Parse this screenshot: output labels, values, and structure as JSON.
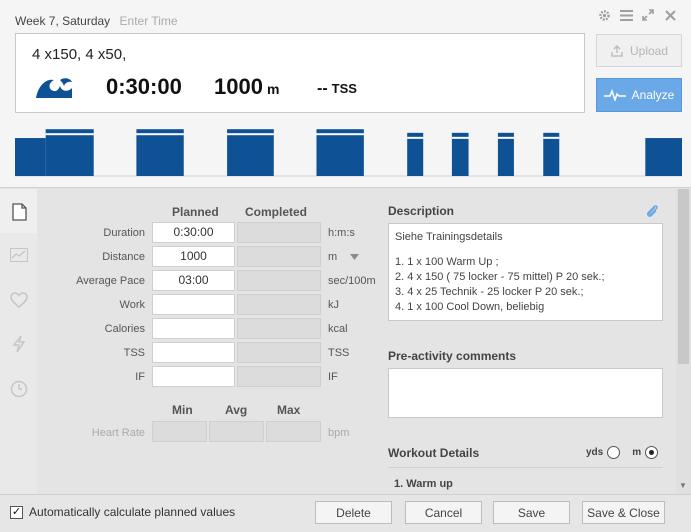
{
  "header": {
    "day_label": "Week 7, Saturday",
    "time_placeholder": "Enter Time",
    "title": "4 x150, 4 x50,",
    "duration": "0:30:00",
    "distance_value": "1000",
    "distance_unit": "m",
    "tss_value": "--",
    "tss_unit": "TSS",
    "upload_label": "Upload",
    "analyze_label": "Analyze",
    "sport_icon": "swim-wave-icon"
  },
  "workout_structure": {
    "color": "#0f5195",
    "blocks": [
      {
        "start": 0,
        "end": 0.046,
        "level": 0.73
      },
      {
        "start": 0.046,
        "end": 0.118,
        "level": 0.9
      },
      {
        "start": 0.182,
        "end": 0.253,
        "level": 0.9
      },
      {
        "start": 0.318,
        "end": 0.388,
        "level": 0.9
      },
      {
        "start": 0.452,
        "end": 0.523,
        "level": 0.9
      },
      {
        "start": 0.588,
        "end": 0.612,
        "level": 0.83
      },
      {
        "start": 0.655,
        "end": 0.68,
        "level": 0.83
      },
      {
        "start": 0.724,
        "end": 0.748,
        "level": 0.83
      },
      {
        "start": 0.792,
        "end": 0.816,
        "level": 0.83
      },
      {
        "start": 0.945,
        "end": 1.0,
        "level": 0.73
      }
    ]
  },
  "form": {
    "col_planned": "Planned",
    "col_completed": "Completed",
    "rows": [
      {
        "label": "Duration",
        "planned": "0:30:00",
        "unit": "h:m:s"
      },
      {
        "label": "Distance",
        "planned": "1000",
        "unit": "m"
      },
      {
        "label": "Average Pace",
        "planned": "03:00",
        "unit": "sec/100m"
      },
      {
        "label": "Work",
        "planned": "",
        "unit": "kJ"
      },
      {
        "label": "Calories",
        "planned": "",
        "unit": "kcal"
      },
      {
        "label": "TSS",
        "planned": "",
        "unit": "TSS"
      },
      {
        "label": "IF",
        "planned": "",
        "unit": "IF"
      }
    ],
    "hr": {
      "min": "Min",
      "avg": "Avg",
      "max": "Max",
      "label": "Heart Rate",
      "unit": "bpm"
    }
  },
  "description": {
    "title": "Description",
    "lines": [
      "Siehe Trainingsdetails",
      "",
      "1. 1 x 100 Warm Up ;",
      "2. 4 x  150 ( 75 locker - 75 mittel) P 20 sek.;",
      "3. 4 x  25 Technik - 25 locker P 20 sek.;",
      "4. 1 x  100 Cool Down, beliebig"
    ]
  },
  "pre_activity": {
    "title": "Pre-activity comments"
  },
  "workout_details": {
    "title": "Workout Details",
    "unit_yds": "yds",
    "unit_m": "m",
    "selected_unit": "m",
    "first_item": "1. Warm up"
  },
  "footer": {
    "auto_calc_label": "Automatically calculate planned values",
    "auto_calc_checked": true,
    "delete_label": "Delete",
    "cancel_label": "Cancel",
    "save_label": "Save",
    "save_close_label": "Save & Close"
  }
}
